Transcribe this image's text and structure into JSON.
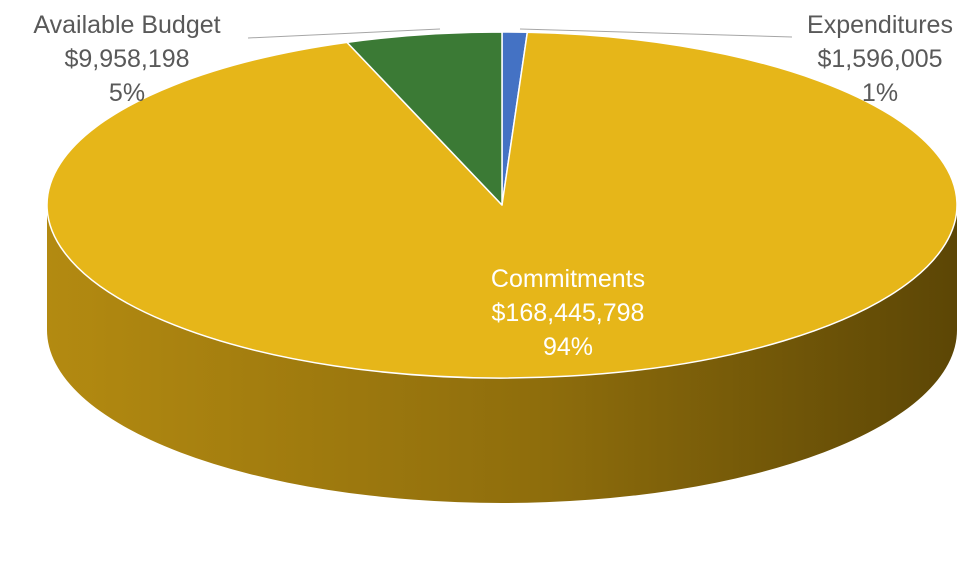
{
  "chart_data": {
    "type": "pie",
    "style": "3d",
    "slices": [
      {
        "category": "Expenditures",
        "value": 1596005,
        "value_label": "$1,596,005",
        "percent_label": "1%",
        "color": "#4472C4",
        "label_color": "#595959"
      },
      {
        "category": "Commitments",
        "value": 168445798,
        "value_label": "$168,445,798",
        "percent_label": "94%",
        "color": "#E6B619",
        "label_color": "#FFFFFF"
      },
      {
        "category": "Available Budget",
        "value": 9958198,
        "value_label": "$9,958,198",
        "percent_label": "5%",
        "color": "#3B7A35",
        "label_color": "#595959"
      }
    ],
    "side_color": "#B38A11",
    "side_shadow_color": "#5C4605"
  }
}
